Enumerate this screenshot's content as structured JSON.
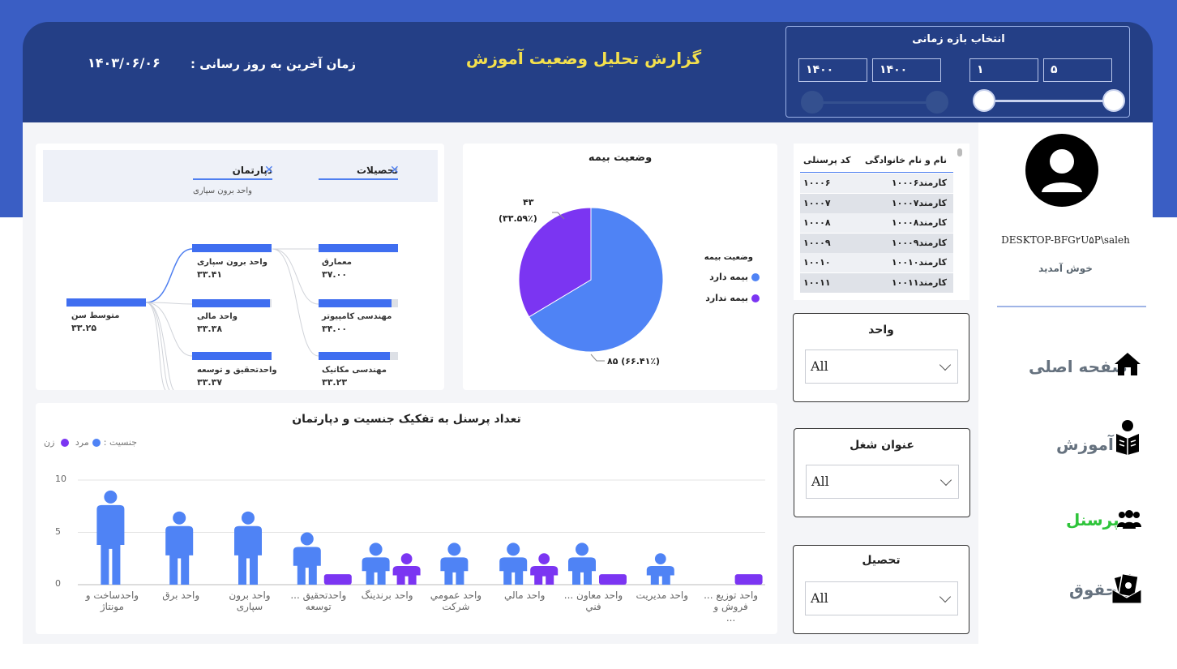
{
  "header": {
    "title": "گزارش تحلیل وضعیت آموزش",
    "update_label": "زمان آخرین به روز رسانی :",
    "update_date": "۱۴۰۳/۰۶/۰۶"
  },
  "range": {
    "title": "انتخاب بازه زمانی",
    "inputs": [
      "۱۴۰۰",
      "۱۴۰۰",
      "۱",
      "۵"
    ]
  },
  "tree": {
    "crumbs": [
      {
        "label": "دپارتمان",
        "sub": "واحد برون سپاری"
      },
      {
        "label": "تحصیلات",
        "sub": ""
      }
    ],
    "root": {
      "label": "متوسط سن",
      "value": "۳۳.۲۵"
    },
    "level1": [
      {
        "label": "واحد برون سپاری",
        "value": "۳۳.۴۱"
      },
      {
        "label": "واحد مالی",
        "value": "۳۳.۳۸"
      },
      {
        "label": "واحدتحقیق و توسعه",
        "value": "۳۳.۳۷"
      }
    ],
    "level2": [
      {
        "label": "معمارق",
        "value": "۳۷.۰۰"
      },
      {
        "label": "مهندسی کامپیوتر",
        "value": "۳۴.۰۰"
      },
      {
        "label": "مهندسی مکانیک",
        "value": "۳۳.۲۳"
      }
    ]
  },
  "pie": {
    "title": "وضعیت بیمه",
    "legend_title": "وضعیت بیمه",
    "slices": [
      {
        "label": "بیمه دارد",
        "value": 85,
        "text": "۸۵ (۶۶.۴۱٪)",
        "color": "#4f83f5"
      },
      {
        "label": "بیمه ندارد",
        "value": 43,
        "text_count": "۴۳",
        "text_pct": "(۳۳.۵۹٪)",
        "color": "#7b35f2"
      }
    ]
  },
  "table": {
    "headers": [
      "نام و نام خانوادگی",
      "کد پرسنلی"
    ],
    "rows": [
      [
        "کارمند۱۰۰۰۶",
        "۱۰۰۰۶"
      ],
      [
        "کارمند۱۰۰۰۷",
        "۱۰۰۰۷"
      ],
      [
        "کارمند۱۰۰۰۸",
        "۱۰۰۰۸"
      ],
      [
        "کارمند۱۰۰۰۹",
        "۱۰۰۰۹"
      ],
      [
        "کارمند۱۰۰۱۰",
        "۱۰۰۱۰"
      ],
      [
        "کارمند۱۰۰۱۱",
        "۱۰۰۱۱"
      ]
    ]
  },
  "slicers": [
    {
      "title": "واحد",
      "value": "All"
    },
    {
      "title": "عنوان شغل",
      "value": "All"
    },
    {
      "title": "تحصیل",
      "value": "All"
    }
  ],
  "user": {
    "name": "DESKTOP-BFG۲U۵P\\saleh",
    "welcome": "خوش آمدید"
  },
  "nav": [
    {
      "label": "صفحه اصلی",
      "icon": "home-icon"
    },
    {
      "label": "آموزش",
      "icon": "reader-icon"
    },
    {
      "label": "پرسنل",
      "icon": "people-icon"
    },
    {
      "label": "حقوق",
      "icon": "money-envelope-icon"
    }
  ],
  "chart_data": {
    "type": "bar",
    "title": "تعداد پرسنل به تفکیک جنسیت و دپارتمان",
    "legend_title": "جنسیت",
    "ylim": [
      0,
      10
    ],
    "yticks": [
      "0",
      "5",
      "10"
    ],
    "categories": [
      [
        "واحدساخت و",
        "مونتاژ"
      ],
      [
        "واحد برق"
      ],
      [
        "واحد برون",
        "سپاری"
      ],
      [
        "واحدتحقیق ...",
        "توسعه"
      ],
      [
        "واحد برندینگ"
      ],
      [
        "واحد عمومي",
        "شرکت"
      ],
      [
        "واحد مالي"
      ],
      [
        "واحد معاون ...",
        "فني"
      ],
      [
        "واحد مديريت"
      ],
      [
        "واحد توزيع ...",
        "فروش و",
        "..."
      ]
    ],
    "series": [
      {
        "name": "مرد",
        "color": "#4f83f5",
        "values": [
          9,
          7,
          7,
          5,
          4,
          4,
          4,
          4,
          3,
          0
        ]
      },
      {
        "name": "زن",
        "color": "#7b35f2",
        "values": [
          0,
          0,
          0,
          1,
          3,
          0,
          3,
          1,
          0,
          1
        ]
      }
    ]
  }
}
